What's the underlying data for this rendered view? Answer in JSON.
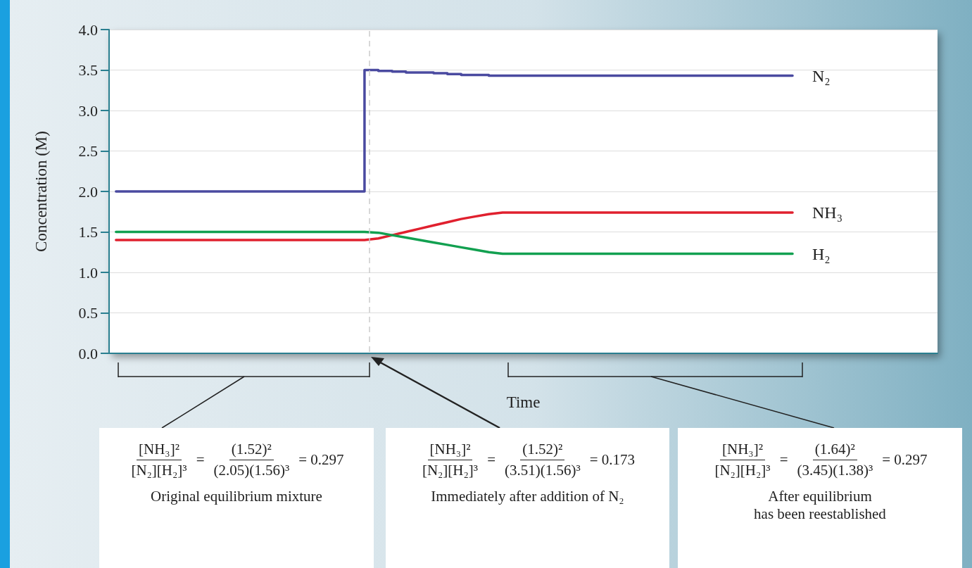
{
  "chart_data": {
    "type": "line",
    "xlabel": "Time",
    "ylabel": "Concentration (M)",
    "categories": [
      null,
      null,
      null,
      null,
      null,
      null,
      null,
      null,
      null,
      null,
      null,
      null,
      null,
      null,
      null,
      null,
      null,
      null,
      null,
      null,
      null,
      null,
      null,
      null,
      null,
      null,
      null,
      null,
      null,
      null,
      null,
      null,
      null,
      null,
      null,
      null,
      null,
      null,
      null,
      null,
      null,
      null,
      null,
      null,
      null,
      null,
      null,
      null,
      null,
      null
    ],
    "series": [
      {
        "name": "N₂",
        "type": "step",
        "color": "#4a4aa0",
        "values": [
          2.0,
          2.0,
          2.0,
          2.0,
          2.0,
          2.0,
          2.0,
          2.0,
          2.0,
          2.0,
          2.0,
          2.0,
          2.0,
          2.0,
          2.0,
          2.0,
          2.0,
          2.0,
          2.0,
          3.5,
          3.49,
          3.48,
          3.47,
          3.47,
          3.46,
          3.45,
          3.44,
          3.44,
          3.43,
          3.43,
          3.43,
          3.43,
          3.43,
          3.43,
          3.43,
          3.43,
          3.43,
          3.43,
          3.43,
          3.43,
          3.43,
          3.43,
          3.43,
          3.43,
          3.43,
          3.43,
          3.43,
          3.43,
          3.43,
          3.43
        ]
      },
      {
        "name": "NH₃",
        "color": "#e0202e",
        "values": [
          1.4,
          1.4,
          1.4,
          1.4,
          1.4,
          1.4,
          1.4,
          1.4,
          1.4,
          1.4,
          1.4,
          1.4,
          1.4,
          1.4,
          1.4,
          1.4,
          1.4,
          1.4,
          1.4,
          1.42,
          1.46,
          1.5,
          1.54,
          1.58,
          1.62,
          1.66,
          1.69,
          1.72,
          1.74,
          1.74,
          1.74,
          1.74,
          1.74,
          1.74,
          1.74,
          1.74,
          1.74,
          1.74,
          1.74,
          1.74,
          1.74,
          1.74,
          1.74,
          1.74,
          1.74,
          1.74,
          1.74,
          1.74,
          1.74,
          1.74
        ]
      },
      {
        "name": "H₂",
        "color": "#12a050",
        "values": [
          1.5,
          1.5,
          1.5,
          1.5,
          1.5,
          1.5,
          1.5,
          1.5,
          1.5,
          1.5,
          1.5,
          1.5,
          1.5,
          1.5,
          1.5,
          1.5,
          1.5,
          1.5,
          1.5,
          1.49,
          1.46,
          1.43,
          1.4,
          1.37,
          1.34,
          1.31,
          1.28,
          1.25,
          1.23,
          1.23,
          1.23,
          1.23,
          1.23,
          1.23,
          1.23,
          1.23,
          1.23,
          1.23,
          1.23,
          1.23,
          1.23,
          1.23,
          1.23,
          1.23,
          1.23,
          1.23,
          1.23,
          1.23,
          1.23,
          1.23
        ]
      }
    ],
    "ylim": [
      0,
      4
    ],
    "yticks": [
      {
        "value": 0,
        "label": "0.0"
      },
      {
        "value": 0.5,
        "label": "0.5"
      },
      {
        "value": 1,
        "label": "1.0"
      },
      {
        "value": 1.5,
        "label": "1.5"
      },
      {
        "value": 2,
        "label": "2.0"
      },
      {
        "value": 2.5,
        "label": "2.5"
      },
      {
        "value": 3,
        "label": "3.0"
      },
      {
        "value": 3.5,
        "label": "3.5"
      },
      {
        "value": 4,
        "label": "4.0"
      }
    ],
    "grid": "y",
    "tick_labels": "y",
    "annotations": [
      "[NH₃]²",
      "[N₂][H₂]³",
      "=",
      "(1.52)²",
      "(2.05)(1.56)³",
      "= 0.297",
      "Original equilibrium mixture",
      "[NH₃]²",
      "[N₂][H₂]³",
      "=",
      "(1.52)²",
      "(3.51)(1.56)³",
      "= 0.173",
      "Immediately after addition of N₂",
      "[NH₃]²",
      "[N₂][H₂]³",
      "=",
      "(1.64)²",
      "(3.45)(1.38)³",
      "= 0.297",
      "After equilibrium\nhas been reestablished"
    ]
  }
}
